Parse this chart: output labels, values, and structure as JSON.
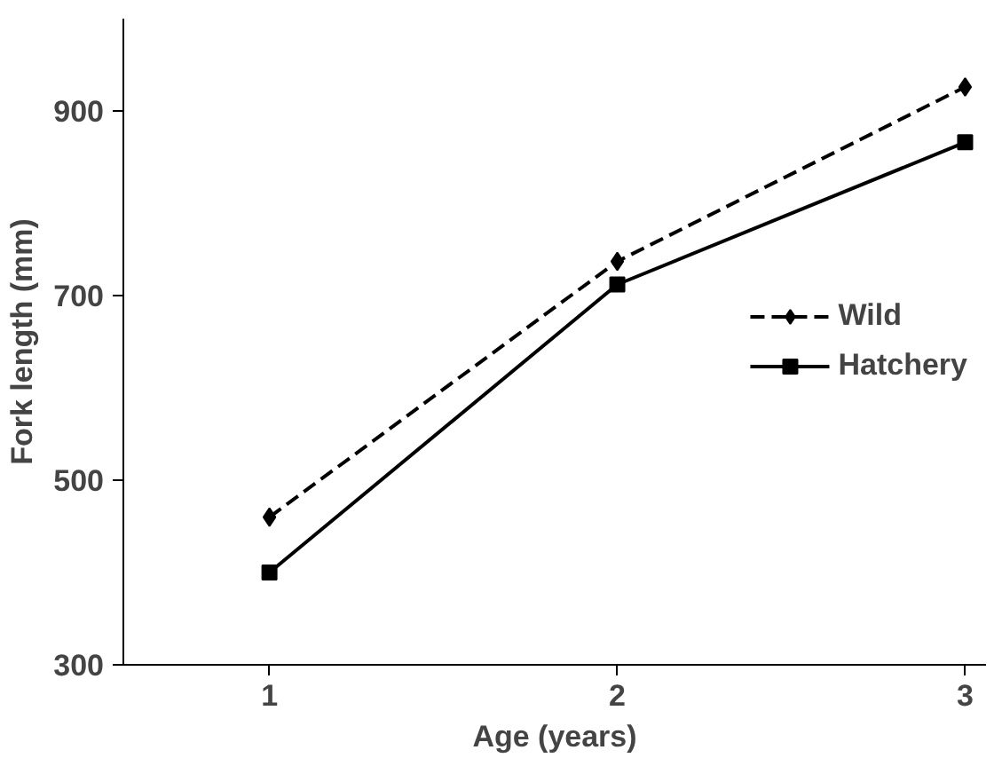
{
  "chart_data": {
    "type": "line",
    "xlabel": "Age (years)",
    "ylabel": "Fork length (mm)",
    "x": [
      1,
      2,
      3
    ],
    "series": [
      {
        "name": "Wild",
        "color": "#000000",
        "values": [
          460,
          737,
          926
        ],
        "marker": "diamond",
        "line_style": "dashed"
      },
      {
        "name": "Hatchery",
        "color": "#000000",
        "values": [
          400,
          712,
          866
        ],
        "marker": "square",
        "line_style": "solid"
      }
    ],
    "xlim": [
      0.58,
      3.06
    ],
    "xticks": [
      1,
      2,
      3
    ],
    "ylim": [
      300,
      1000
    ],
    "yticks": [
      300,
      500,
      700,
      900
    ],
    "grid": false,
    "legend": "right"
  }
}
